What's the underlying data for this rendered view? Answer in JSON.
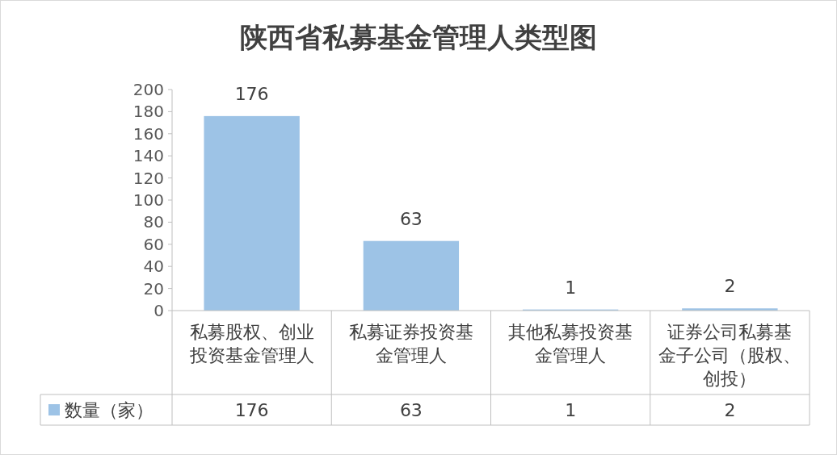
{
  "chart_data": {
    "type": "bar",
    "title": "陕西省私募基金管理人类型图",
    "categories": [
      "私募股权、创业投资基金管理人",
      "私募证券投资基金管理人",
      "其他私募投资基金管理人",
      "证券公司私募基金子公司（股权、创投）"
    ],
    "series": [
      {
        "name": "数量（家）",
        "color": "#9dc3e6",
        "values": [
          176,
          63,
          1,
          2
        ],
        "value_labels": [
          "176",
          "63",
          "1",
          "2"
        ]
      }
    ],
    "ylim": [
      0,
      200
    ],
    "yticks": [
      0,
      20,
      40,
      60,
      80,
      100,
      120,
      140,
      160,
      180,
      200
    ],
    "annotations": [
      "176",
      "63",
      "1",
      "2"
    ],
    "data_labels": true,
    "legend": "bottom",
    "grid": false
  }
}
